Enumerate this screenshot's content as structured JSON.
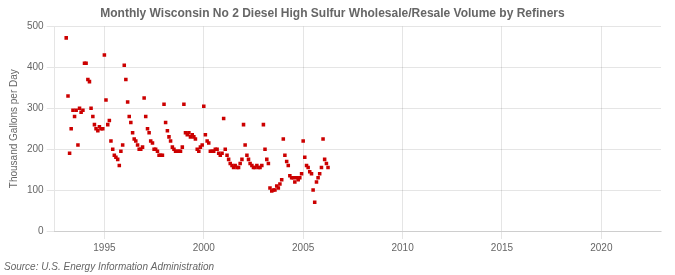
{
  "chart_data": {
    "type": "scatter",
    "title": "Monthly Wisconsin No 2 Diesel High Sulfur Wholesale/Resale Volume by Refiners",
    "y_label": "Thousand Gallons per Day",
    "annotations": [
      "Source: U.S. Energy Information Administration"
    ],
    "color": "#cc0000",
    "marker": "square",
    "grid": true,
    "xlim": [
      1992.5,
      2023.0
    ],
    "ylim": [
      0,
      500
    ],
    "xticks": [
      1995,
      2000,
      2005,
      2010,
      2015,
      2020
    ],
    "yticks": [
      0,
      100,
      200,
      300,
      400,
      500
    ],
    "x": [
      1993.08,
      1993.17,
      1993.25,
      1993.33,
      1993.42,
      1993.5,
      1993.58,
      1993.67,
      1993.75,
      1993.83,
      1993.92,
      1994.0,
      1994.08,
      1994.17,
      1994.25,
      1994.33,
      1994.42,
      1994.5,
      1994.58,
      1994.67,
      1994.75,
      1994.83,
      1994.92,
      1995.0,
      1995.08,
      1995.17,
      1995.25,
      1995.33,
      1995.42,
      1995.5,
      1995.58,
      1995.67,
      1995.75,
      1995.83,
      1995.92,
      1996.0,
      1996.08,
      1996.17,
      1996.25,
      1996.33,
      1996.42,
      1996.5,
      1996.58,
      1996.67,
      1996.75,
      1996.83,
      1996.92,
      1997.0,
      1997.08,
      1997.17,
      1997.25,
      1997.33,
      1997.42,
      1997.5,
      1997.58,
      1997.67,
      1997.75,
      1997.83,
      1997.92,
      1998.0,
      1998.08,
      1998.17,
      1998.25,
      1998.33,
      1998.42,
      1998.5,
      1998.58,
      1998.67,
      1998.75,
      1998.83,
      1998.92,
      1999.0,
      1999.08,
      1999.17,
      1999.25,
      1999.33,
      1999.42,
      1999.5,
      1999.58,
      1999.67,
      1999.75,
      1999.83,
      1999.92,
      2000.0,
      2000.08,
      2000.17,
      2000.25,
      2000.33,
      2000.42,
      2000.5,
      2000.58,
      2000.67,
      2000.75,
      2000.83,
      2000.92,
      2001.0,
      2001.08,
      2001.17,
      2001.25,
      2001.33,
      2001.42,
      2001.5,
      2001.58,
      2001.67,
      2001.75,
      2001.83,
      2001.92,
      2002.0,
      2002.08,
      2002.17,
      2002.25,
      2002.33,
      2002.42,
      2002.5,
      2002.58,
      2002.67,
      2002.75,
      2002.83,
      2002.92,
      2003.0,
      2003.08,
      2003.17,
      2003.25,
      2003.33,
      2003.42,
      2003.5,
      2003.58,
      2003.67,
      2003.75,
      2003.83,
      2003.92,
      2004.0,
      2004.08,
      2004.17,
      2004.25,
      2004.33,
      2004.42,
      2004.5,
      2004.58,
      2004.67,
      2004.75,
      2004.83,
      2004.92,
      2005.0,
      2005.08,
      2005.17,
      2005.25,
      2005.33,
      2005.42,
      2005.5,
      2005.58,
      2005.67,
      2005.75,
      2005.83,
      2005.92,
      2006.0,
      2006.08,
      2006.17,
      2006.25
    ],
    "values": [
      472,
      330,
      190,
      250,
      295,
      280,
      295,
      210,
      300,
      290,
      295,
      410,
      410,
      370,
      365,
      300,
      280,
      260,
      250,
      245,
      255,
      250,
      250,
      430,
      320,
      260,
      270,
      220,
      200,
      185,
      180,
      175,
      160,
      195,
      210,
      405,
      370,
      315,
      280,
      265,
      240,
      225,
      220,
      210,
      200,
      200,
      205,
      325,
      280,
      250,
      240,
      220,
      215,
      200,
      200,
      195,
      185,
      185,
      185,
      310,
      265,
      245,
      230,
      220,
      205,
      200,
      195,
      195,
      195,
      195,
      205,
      310,
      240,
      235,
      240,
      230,
      235,
      230,
      225,
      200,
      195,
      205,
      210,
      305,
      235,
      220,
      215,
      195,
      195,
      195,
      200,
      200,
      190,
      185,
      190,
      275,
      200,
      185,
      175,
      165,
      160,
      155,
      160,
      155,
      155,
      165,
      175,
      260,
      210,
      185,
      175,
      165,
      160,
      155,
      155,
      160,
      155,
      155,
      160,
      260,
      200,
      175,
      165,
      105,
      98,
      100,
      100,
      110,
      105,
      115,
      125,
      225,
      185,
      170,
      160,
      135,
      130,
      130,
      120,
      130,
      125,
      130,
      140,
      220,
      180,
      160,
      155,
      145,
      140,
      100,
      70,
      120,
      130,
      140,
      155,
      225,
      175,
      165,
      155
    ]
  }
}
